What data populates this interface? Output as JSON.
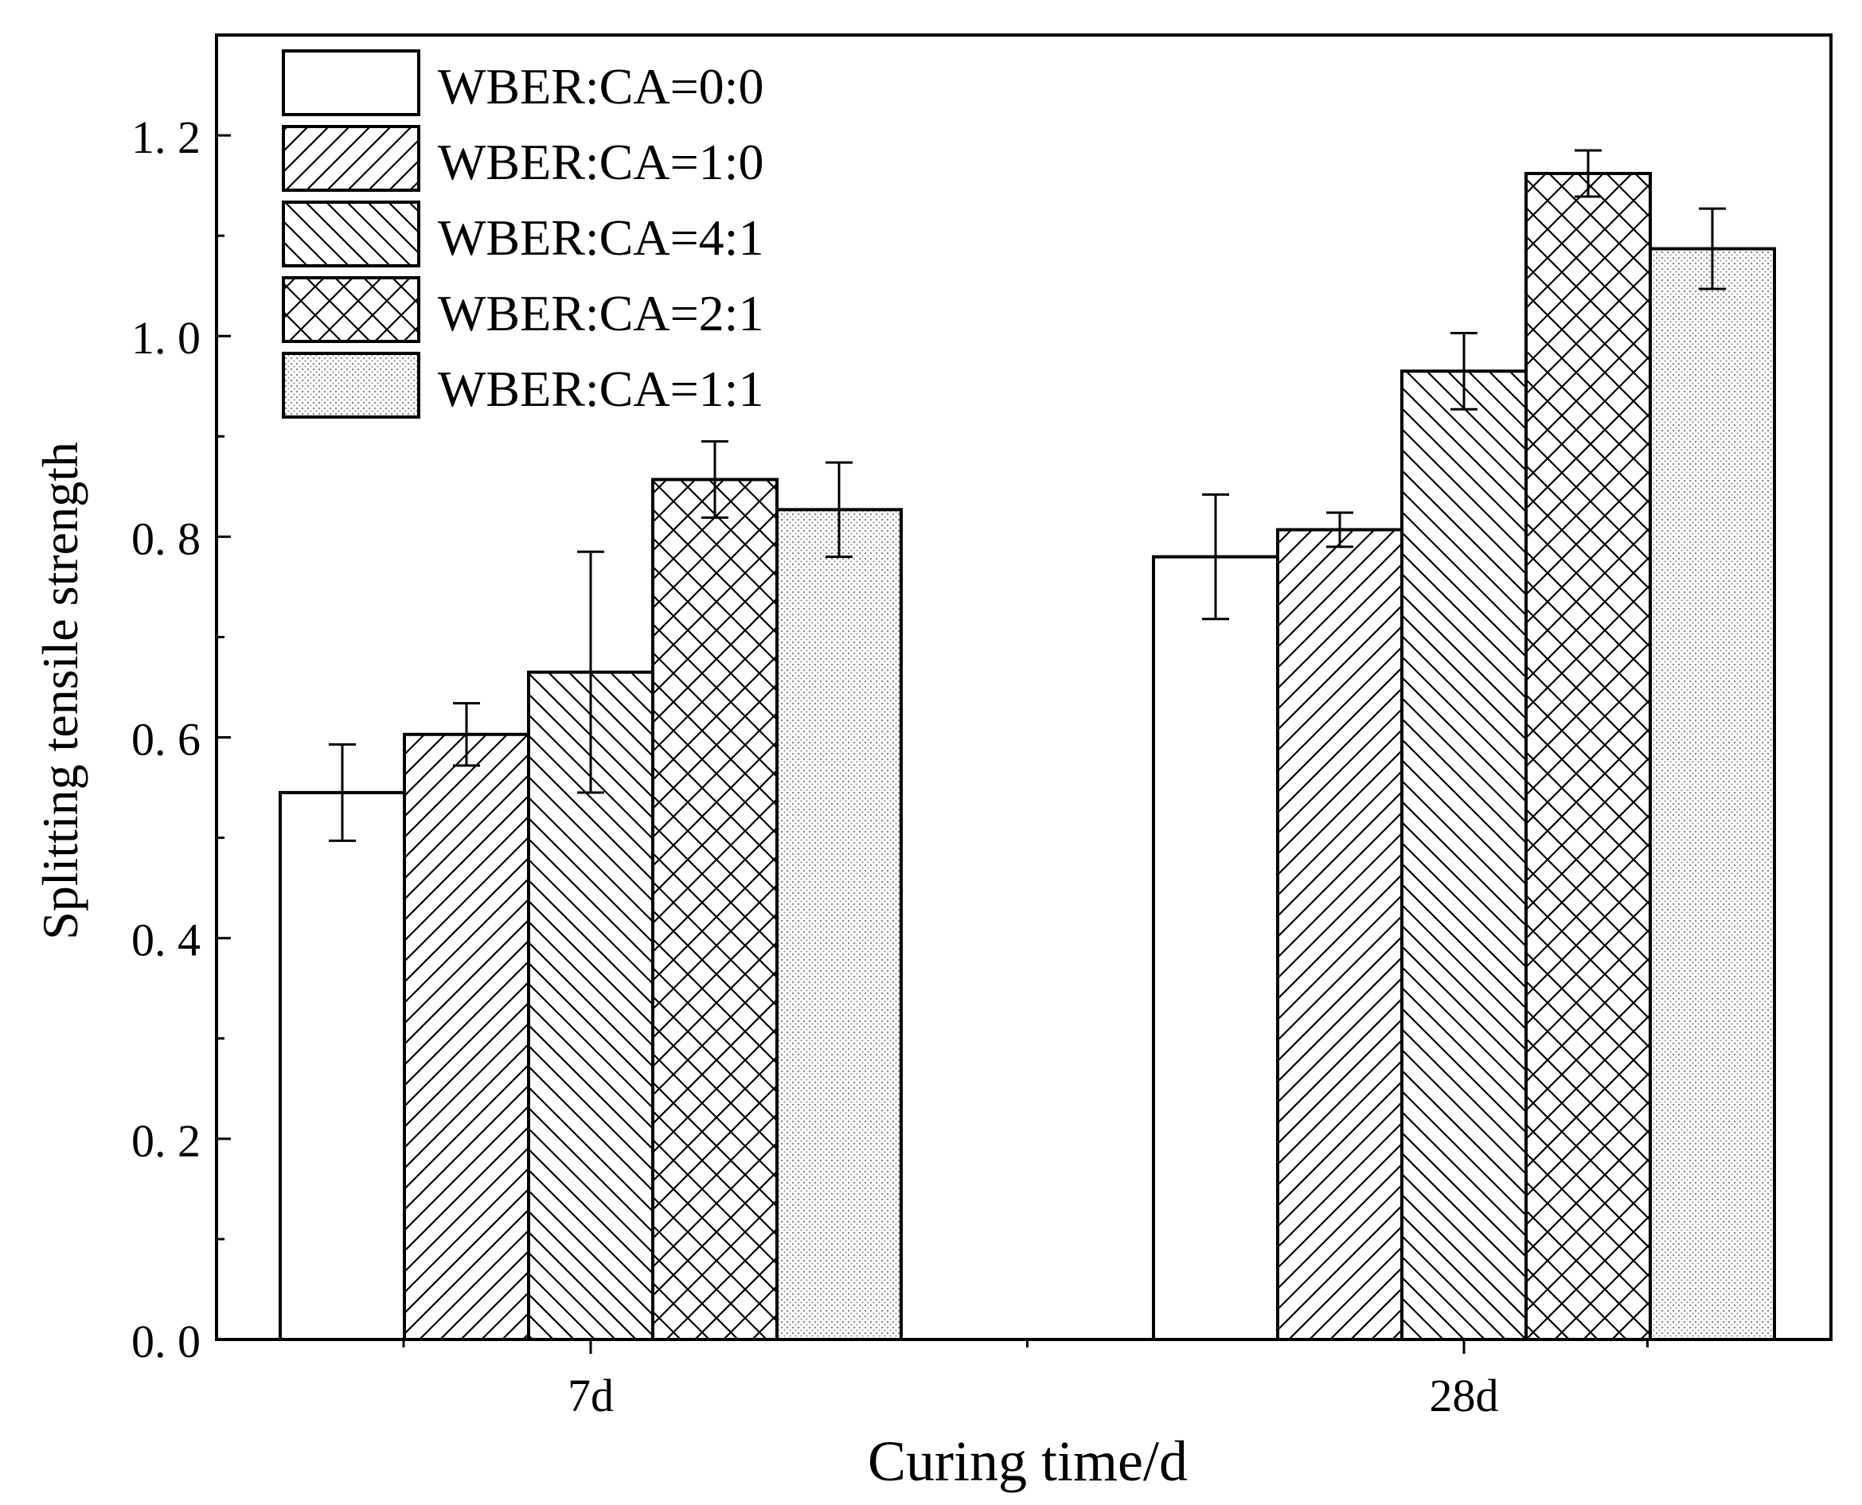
{
  "chart_data": {
    "type": "bar",
    "title": "",
    "xlabel": "Curing time/d",
    "ylabel": "Splitting tensile strength",
    "categories": [
      "7d",
      "28d"
    ],
    "ylim": [
      0,
      1.3
    ],
    "yticks": [
      0.0,
      0.2,
      0.4,
      0.6,
      0.8,
      1.0,
      1.2
    ],
    "ytick_labels": [
      "0. 0",
      "0. 2",
      "0. 4",
      "0. 6",
      "0. 8",
      "1. 0",
      "1. 2"
    ],
    "legend_position": "top-left",
    "series": [
      {
        "name": "WBER:CA=0:0",
        "pattern": "none",
        "values": [
          0.545,
          0.78
        ],
        "errors": [
          0.048,
          0.062
        ]
      },
      {
        "name": "WBER:CA=1:0",
        "pattern": "diag-up",
        "values": [
          0.603,
          0.807
        ],
        "errors": [
          0.031,
          0.017
        ]
      },
      {
        "name": "WBER:CA=4:1",
        "pattern": "diag-down",
        "values": [
          0.665,
          0.965
        ],
        "errors": [
          0.12,
          0.038
        ]
      },
      {
        "name": "WBER:CA=2:1",
        "pattern": "crosshatch",
        "values": [
          0.857,
          1.162
        ],
        "errors": [
          0.038,
          0.023
        ]
      },
      {
        "name": "WBER:CA=1:1",
        "pattern": "dots",
        "values": [
          0.827,
          1.087
        ],
        "errors": [
          0.047,
          0.04
        ]
      }
    ]
  }
}
